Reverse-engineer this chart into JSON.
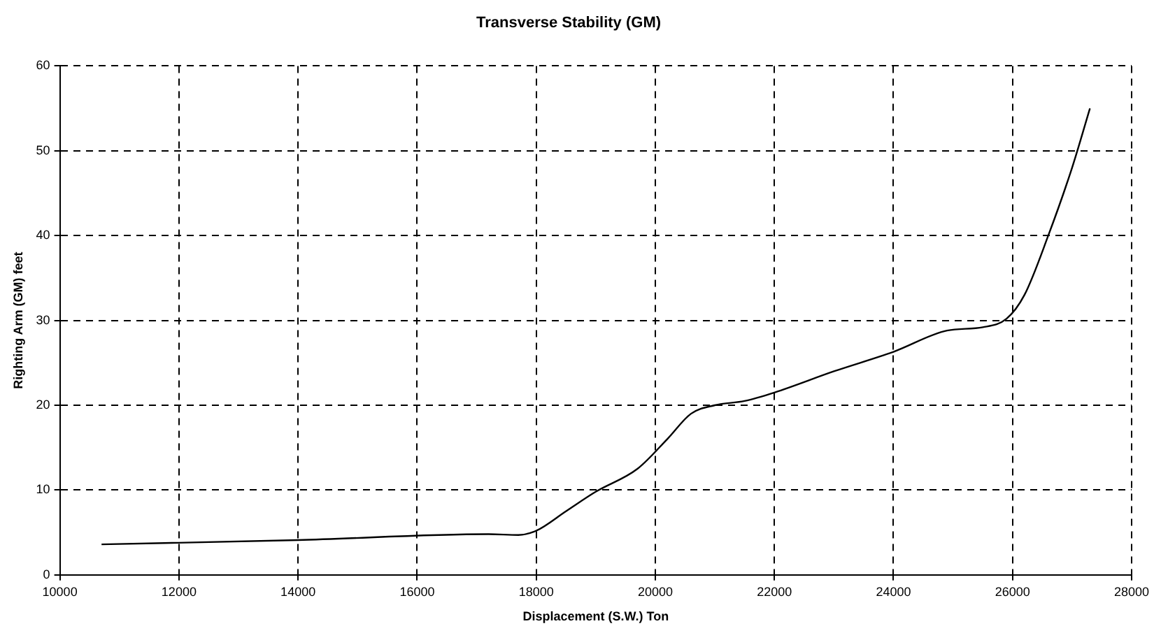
{
  "chart_data": {
    "type": "line",
    "title": "Transverse Stability (GM)",
    "xlabel": "Displacement (S.W.) Ton",
    "ylabel": "Righting Arm (GM) feet",
    "series": [
      {
        "color": "#000000",
        "x": [
          10700,
          14000,
          17200,
          17700,
          18000,
          18500,
          19000,
          19700,
          20200,
          20600,
          21000,
          21500,
          22000,
          23000,
          24000,
          24900,
          25500,
          25900,
          26200,
          26600,
          27000,
          27300
        ],
        "values": [
          3.6,
          4.1,
          4.8,
          4.7,
          5.2,
          7.5,
          9.8,
          12.5,
          16,
          19,
          20,
          20.5,
          21.5,
          24,
          26.3,
          28.8,
          29.2,
          30.2,
          33,
          40,
          48,
          55
        ]
      }
    ],
    "xlim": [
      10000,
      28000
    ],
    "xticks": [
      10000,
      12000,
      14000,
      16000,
      18000,
      20000,
      22000,
      24000,
      26000,
      28000
    ],
    "ylim": [
      0,
      60
    ],
    "yticks": [
      0,
      10,
      20,
      30,
      40,
      50,
      60
    ],
    "grid": true,
    "legend": false,
    "marker": "none",
    "line_style": "solid"
  }
}
